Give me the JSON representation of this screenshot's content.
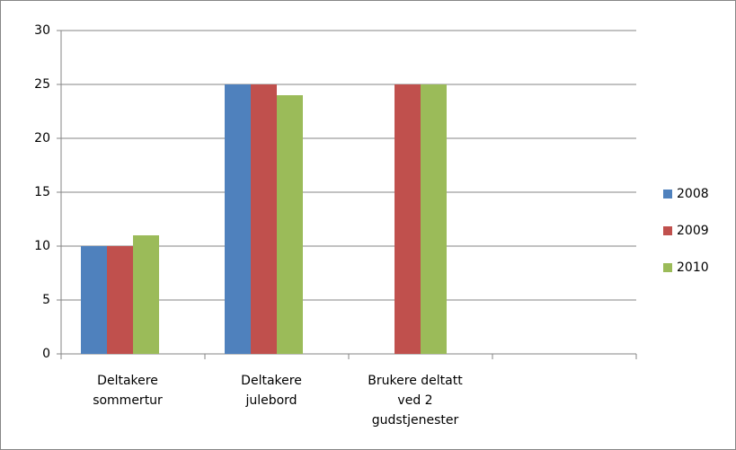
{
  "chart_data": {
    "type": "bar",
    "categories": [
      "Deltakere sommertur",
      "Deltakere julebord",
      "Brukere deltatt ved 2 gudstjenester",
      null
    ],
    "series": [
      {
        "name": "2008",
        "color": "#4f81bd",
        "values": [
          10,
          25,
          null,
          null
        ]
      },
      {
        "name": "2009",
        "color": "#c0504d",
        "values": [
          10,
          25,
          25,
          null
        ]
      },
      {
        "name": "2010",
        "color": "#9bbb59",
        "values": [
          11,
          24,
          25,
          null
        ]
      }
    ],
    "ylim": [
      0,
      30
    ],
    "yticks": [
      0,
      5,
      10,
      15,
      20,
      25,
      30
    ],
    "grid": true,
    "legend": "right"
  }
}
